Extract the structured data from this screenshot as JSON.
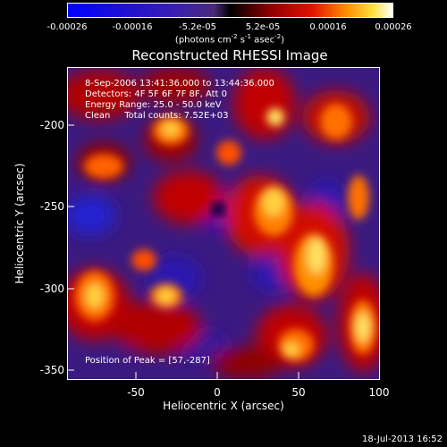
{
  "colorbar": {
    "ticks": [
      "-0.00026",
      "-0.00016",
      "-5.2e-05",
      "5.2e-05",
      "0.00016",
      "0.00026"
    ],
    "units_prefix": "(photons cm",
    "units_sup1": "-2",
    "units_mid": " s",
    "units_sup2": "-1",
    "units_mid2": " asec",
    "units_sup3": "-2",
    "units_suffix": ")"
  },
  "title": "Reconstructed RHESSI Image",
  "overlay": {
    "line1": "8-Sep-2006 13:41:36.000 to 13:44:36.000",
    "line2": "Detectors: 4F 5F 6F 7F 8F, Att 0",
    "line3": "Energy Range: 25.0 - 50.0 keV",
    "line4": "Clean     Total counts: 7.52E+03",
    "peak": "Position of Peak = [57,-287]"
  },
  "axes": {
    "xlabel": "Heliocentric X (arcsec)",
    "ylabel": "Heliocentric Y (arcsec)",
    "xticks": [
      "-50",
      "0",
      "50",
      "100"
    ],
    "yticks": [
      "-200",
      "-250",
      "-300",
      "-350"
    ]
  },
  "timestamp": "18-Jul-2013 16:52"
}
